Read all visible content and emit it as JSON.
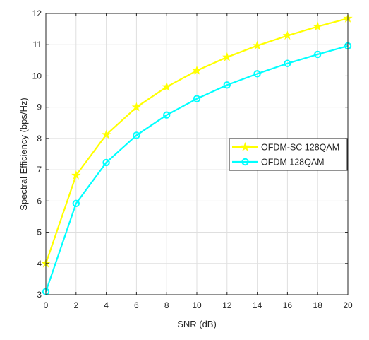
{
  "chart_data": {
    "type": "line",
    "title": "",
    "xlabel": "SNR (dB)",
    "ylabel": "Spectral Efficiency (bps/Hz)",
    "xlim": [
      0,
      20
    ],
    "ylim": [
      3,
      12
    ],
    "x": [
      0,
      2,
      4,
      6,
      8,
      10,
      12,
      14,
      16,
      18,
      20
    ],
    "xticks": [
      "0",
      "2",
      "4",
      "6",
      "8",
      "10",
      "12",
      "14",
      "16",
      "18",
      "20"
    ],
    "yticks": [
      "3",
      "4",
      "5",
      "6",
      "7",
      "8",
      "9",
      "10",
      "11",
      "12"
    ],
    "grid": true,
    "legend_position": "right",
    "series": [
      {
        "name": "OFDM-SC 128QAM",
        "color": "#ffff00",
        "marker": "star",
        "values": [
          4.0,
          6.82,
          8.12,
          9.0,
          9.65,
          10.17,
          10.6,
          10.97,
          11.29,
          11.58,
          11.84
        ]
      },
      {
        "name": "OFDM 128QAM",
        "color": "#00ffff",
        "marker": "circle",
        "values": [
          3.1,
          5.92,
          7.23,
          8.1,
          8.75,
          9.27,
          9.71,
          10.07,
          10.4,
          10.69,
          10.96
        ]
      }
    ]
  }
}
